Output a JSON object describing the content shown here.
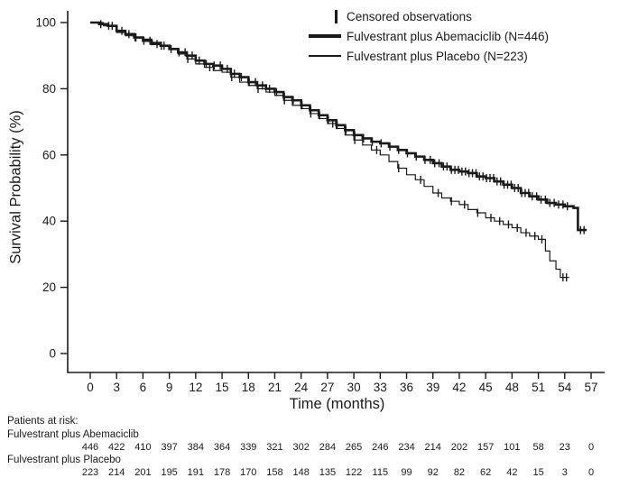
{
  "colors": {
    "line": "#1a1a1a",
    "text": "#1a1a1a",
    "background": "#ffffff"
  },
  "chart_data": {
    "type": "line",
    "subtype": "kaplan-meier-step",
    "title": "",
    "xlabel": "Time (months)",
    "ylabel": "Survival Probability (%)",
    "xlim": [
      0,
      57
    ],
    "ylim": [
      0,
      100
    ],
    "grid": false,
    "x_ticks": [
      0,
      3,
      6,
      9,
      12,
      15,
      18,
      21,
      24,
      27,
      30,
      33,
      36,
      39,
      42,
      45,
      48,
      51,
      54,
      57
    ],
    "y_ticks": [
      0,
      20,
      40,
      60,
      80,
      100
    ],
    "legend": {
      "position": "top-right",
      "censored_label": "Censored observations",
      "entries": [
        {
          "label": "Fulvestrant plus Abemaciclib (N=446)"
        },
        {
          "label": "Fulvestrant plus Placebo (N=223)"
        }
      ]
    },
    "series": [
      {
        "name": "Fulvestrant plus Abemaciclib (N=446)",
        "color": "#1a1a1a",
        "line_width": 2.6,
        "step_points": [
          [
            0,
            100
          ],
          [
            1,
            99.5
          ],
          [
            2,
            99
          ],
          [
            3,
            97.5
          ],
          [
            4,
            96.5
          ],
          [
            5,
            95.5
          ],
          [
            6,
            94.5
          ],
          [
            7,
            93.5
          ],
          [
            8,
            93
          ],
          [
            9,
            92
          ],
          [
            10,
            91
          ],
          [
            11,
            90
          ],
          [
            12,
            88.5
          ],
          [
            13,
            87.5
          ],
          [
            14,
            87
          ],
          [
            15,
            86
          ],
          [
            16,
            84.5
          ],
          [
            17,
            83.5
          ],
          [
            18,
            82
          ],
          [
            19,
            81
          ],
          [
            20,
            80
          ],
          [
            21,
            79
          ],
          [
            22,
            77.5
          ],
          [
            23,
            76.5
          ],
          [
            24,
            75
          ],
          [
            25,
            73.5
          ],
          [
            26,
            72
          ],
          [
            27,
            70.5
          ],
          [
            28,
            69
          ],
          [
            29,
            67.5
          ],
          [
            30,
            66
          ],
          [
            31,
            65
          ],
          [
            32,
            64
          ],
          [
            33,
            63.5
          ],
          [
            34,
            62.5
          ],
          [
            35,
            61.5
          ],
          [
            36,
            60.5
          ],
          [
            37,
            59.5
          ],
          [
            38,
            58.5
          ],
          [
            39,
            57.5
          ],
          [
            40,
            56.5
          ],
          [
            41,
            55.5
          ],
          [
            42,
            55
          ],
          [
            43,
            54.5
          ],
          [
            44,
            53.5
          ],
          [
            45,
            53
          ],
          [
            46,
            52
          ],
          [
            47,
            51
          ],
          [
            48,
            50
          ],
          [
            49,
            48.5
          ],
          [
            50,
            47.5
          ],
          [
            51,
            46.5
          ],
          [
            52,
            45.5
          ],
          [
            53,
            45
          ],
          [
            54,
            44.5
          ],
          [
            55,
            44
          ],
          [
            55.5,
            37.3
          ],
          [
            56.5,
            37.3
          ]
        ],
        "censor_times": [
          1.2,
          2.1,
          3.6,
          4.4,
          5.2,
          6.1,
          6.8,
          7.6,
          8.4,
          9.2,
          10.1,
          10.8,
          11.6,
          12.4,
          13.2,
          14.1,
          14.8,
          15.6,
          16.4,
          17.2,
          18.1,
          18.8,
          19.6,
          20.4,
          21.2,
          22.1,
          23.1,
          24.1,
          25.1,
          26.1,
          27.1,
          28.1,
          29.1,
          30.1,
          31.1,
          32.1,
          33.1,
          34.1,
          35.1,
          36.1,
          37.1,
          38.1,
          38.7,
          39.2,
          39.7,
          40.2,
          40.6,
          41.1,
          41.5,
          41.9,
          42.3,
          42.7,
          43.1,
          43.5,
          43.9,
          44.3,
          44.7,
          45.1,
          45.5,
          45.9,
          46.3,
          46.7,
          47.1,
          47.5,
          47.9,
          48.3,
          48.7,
          49.1,
          49.5,
          49.9,
          50.3,
          50.8,
          51.3,
          51.8,
          52.3,
          52.8,
          53.3,
          53.8,
          54.3,
          55.8,
          56.2
        ]
      },
      {
        "name": "Fulvestrant plus Placebo (N=223)",
        "color": "#1a1a1a",
        "line_width": 1.2,
        "step_points": [
          [
            0,
            100
          ],
          [
            1.5,
            99
          ],
          [
            3,
            97
          ],
          [
            4,
            96
          ],
          [
            5,
            95.5
          ],
          [
            6,
            95
          ],
          [
            7,
            94
          ],
          [
            8,
            93
          ],
          [
            9,
            92
          ],
          [
            10,
            90.5
          ],
          [
            11,
            89
          ],
          [
            12,
            87.5
          ],
          [
            13,
            86.5
          ],
          [
            14,
            85.5
          ],
          [
            15,
            85
          ],
          [
            16,
            83.5
          ],
          [
            17,
            82
          ],
          [
            18,
            81
          ],
          [
            19,
            80
          ],
          [
            20,
            79
          ],
          [
            21,
            78
          ],
          [
            22,
            76.5
          ],
          [
            23,
            75
          ],
          [
            24,
            74
          ],
          [
            25,
            72.5
          ],
          [
            26,
            71
          ],
          [
            27,
            69.5
          ],
          [
            28,
            68
          ],
          [
            29,
            66
          ],
          [
            30,
            64.5
          ],
          [
            31,
            63
          ],
          [
            32,
            61.5
          ],
          [
            33,
            60
          ],
          [
            34,
            58
          ],
          [
            35,
            56
          ],
          [
            36,
            54
          ],
          [
            37,
            52.5
          ],
          [
            38,
            50.5
          ],
          [
            39,
            48.5
          ],
          [
            40,
            47
          ],
          [
            41,
            46
          ],
          [
            42,
            45
          ],
          [
            43,
            43.5
          ],
          [
            44,
            42.5
          ],
          [
            45,
            41
          ],
          [
            46,
            40
          ],
          [
            47,
            39
          ],
          [
            48,
            38
          ],
          [
            49,
            36.5
          ],
          [
            50,
            35.5
          ],
          [
            51,
            34.5
          ],
          [
            51.8,
            31
          ],
          [
            52.3,
            28
          ],
          [
            53,
            25.5
          ],
          [
            53.5,
            23
          ],
          [
            54.5,
            23
          ]
        ],
        "censor_times": [
          2.5,
          5.1,
          8.1,
          11.1,
          13.6,
          16.1,
          19.1,
          22.1,
          25.1,
          27.6,
          30.1,
          32.6,
          35.1,
          37.6,
          39.6,
          41.1,
          42.6,
          44.1,
          45.6,
          46.6,
          47.6,
          48.6,
          49.6,
          50.6,
          51.4,
          53.8,
          54.2
        ]
      }
    ],
    "at_risk": {
      "title": "Patients at risk:",
      "rows": [
        {
          "label": "Fulvestrant plus Abemaciclib",
          "counts": [
            446,
            422,
            410,
            397,
            384,
            364,
            339,
            321,
            302,
            284,
            265,
            246,
            234,
            214,
            202,
            157,
            101,
            58,
            23,
            0
          ]
        },
        {
          "label": "Fulvestrant plus Placebo",
          "counts": [
            223,
            214,
            201,
            195,
            191,
            178,
            170,
            158,
            148,
            135,
            122,
            115,
            99,
            92,
            82,
            62,
            42,
            15,
            3,
            0
          ]
        }
      ]
    }
  }
}
